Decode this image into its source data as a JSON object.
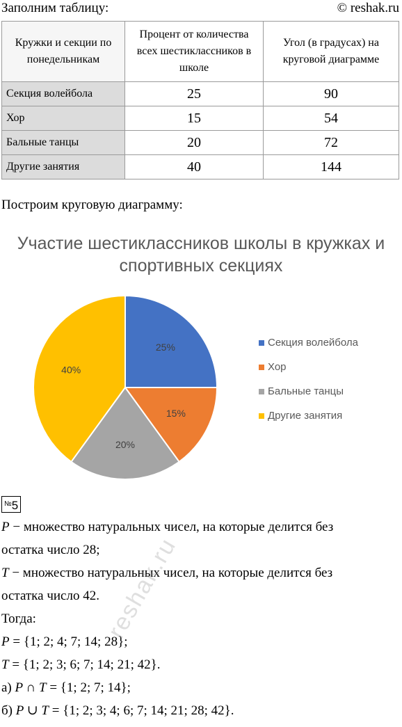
{
  "header": {
    "intro": "Заполним таблицу:",
    "copyright": "© reshak.ru"
  },
  "table": {
    "headers": [
      "Кружки и секции по понедельникам",
      "Процент от количества всех шестиклассников в школе",
      "Угол (в градусах) на круговой диаграмме"
    ],
    "rows": [
      [
        "Секция волейбола",
        "25",
        "90"
      ],
      [
        "Хор",
        "15",
        "54"
      ],
      [
        "Бальные танцы",
        "20",
        "72"
      ],
      [
        "Другие занятия",
        "40",
        "144"
      ]
    ]
  },
  "build_text": "Построим круговую диаграмму:",
  "chart_data": {
    "type": "pie",
    "title": "Участие шестиклассников школы в кружках и спортивных секциях",
    "title_lines": [
      "Участие шестиклассников школы в кружках и",
      "спортивных секциях"
    ],
    "categories": [
      "Секция волейбола",
      "Хор",
      "Бальные танцы",
      "Другие занятия"
    ],
    "values": [
      25,
      15,
      20,
      40
    ],
    "data_labels": [
      "25%",
      "15%",
      "20%",
      "40%"
    ],
    "colors": [
      "#4472C4",
      "#ED7D31",
      "#A5A5A5",
      "#FFC000"
    ],
    "legend_position": "right"
  },
  "task": {
    "number_prefix": "№",
    "number": "5",
    "lines": [
      {
        "var": "P",
        "text": " − множество натуральных чисел, на которые делится без"
      },
      {
        "text": "остатка число 28;"
      },
      {
        "var": "T",
        "text": " − множество натуральных чисел, на которые делится без"
      },
      {
        "text": "остатка число 42."
      },
      {
        "text": "Тогда:"
      },
      {
        "var": "P",
        "text": " = {1; 2; 4; 7; 14; 28};"
      },
      {
        "var": "T",
        "text": " = {1; 2; 3; 6; 7; 14; 21; 42}."
      },
      {
        "prefix": "а) ",
        "var": "P ∩ T",
        "text": " = {1; 2; 7; 14};"
      },
      {
        "prefix": "б) ",
        "var": "P ∪ T",
        "text": " = {1; 2; 3; 4; 6; 7; 14; 21; 28; 42}."
      }
    ]
  },
  "watermark": "reshak.ru"
}
